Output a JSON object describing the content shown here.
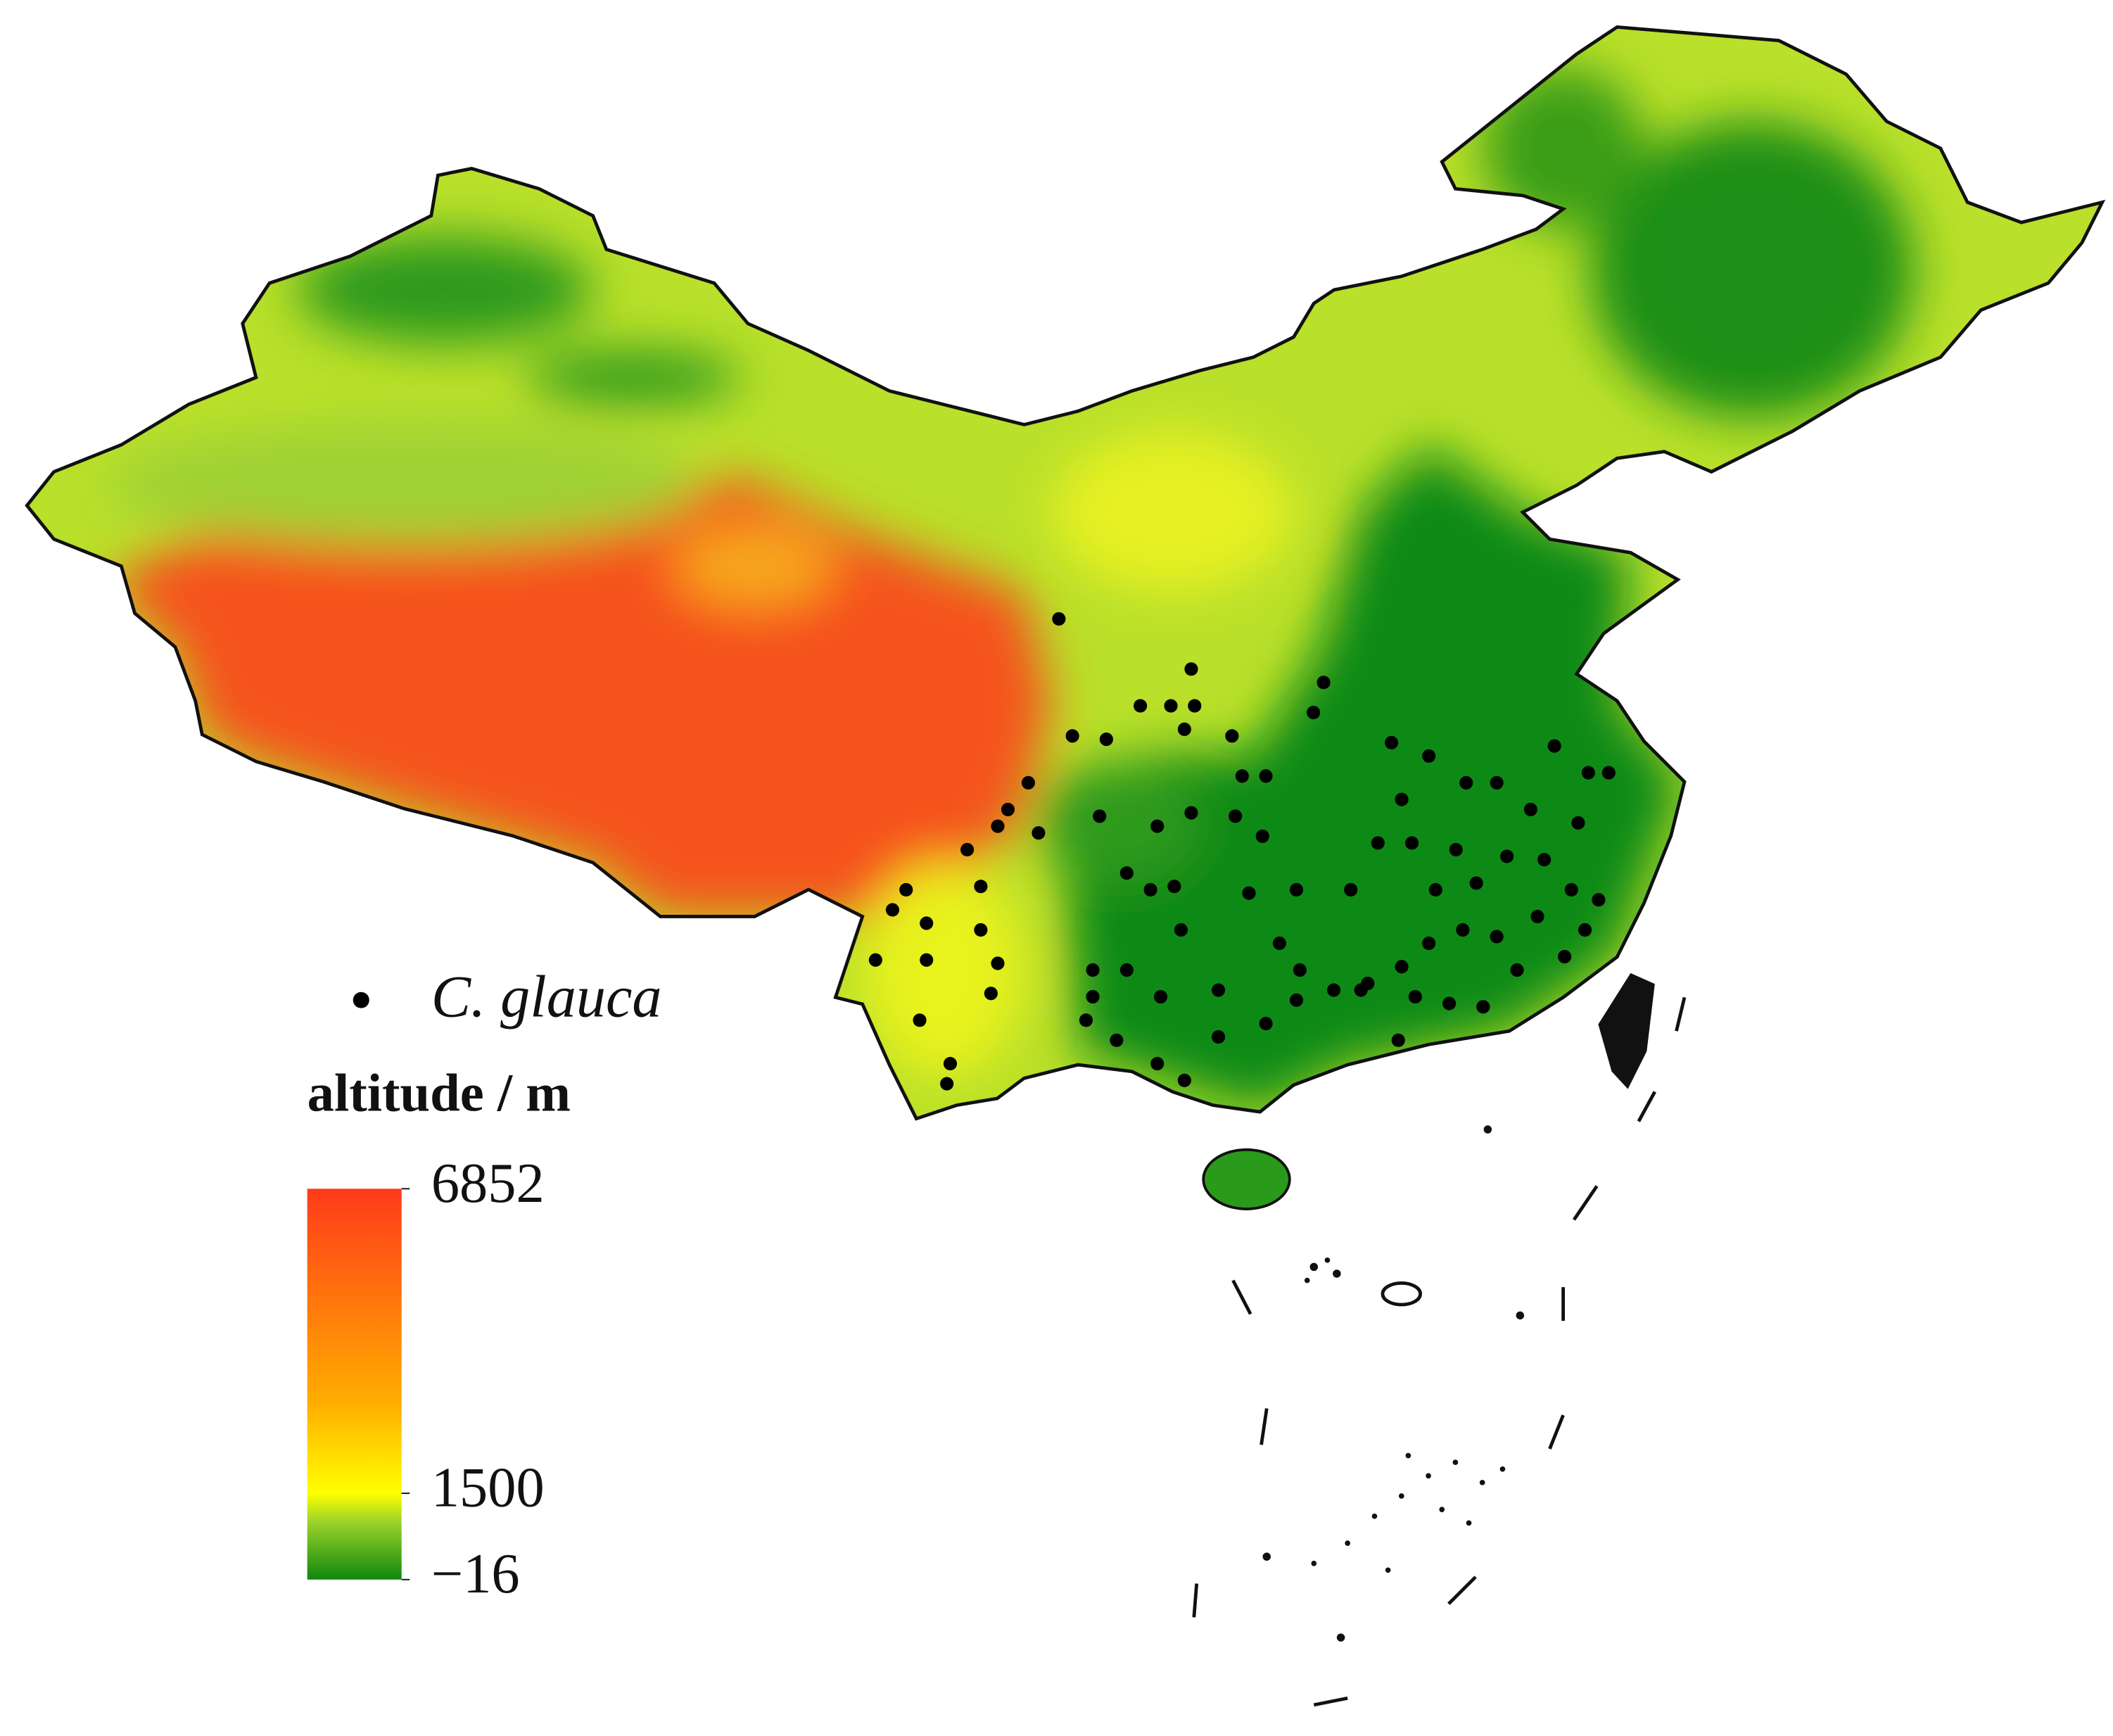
{
  "chart_data": {
    "type": "map",
    "colorbar_title": "altitude / m",
    "ylim": [
      -16,
      6852
    ],
    "yticks": [
      6852,
      1500,
      {
        "value": -16,
        "label": "−16"
      }
    ],
    "series": [
      {
        "name": "C. glauca",
        "color": "#000000",
        "lon": [
          103.9,
          107.8,
          111.7,
          104.3,
          105.3,
          106.3,
          107.2,
          107.6,
          107.9,
          109.0,
          111.4,
          114.8,
          113.7,
          118.5,
          119.5,
          120.1,
          109.3,
          110.0,
          103.0,
          102.4,
          102.1,
          101.2,
          103.3,
          105.1,
          106.8,
          107.8,
          109.1,
          109.9,
          114.0,
          115.9,
          116.8,
          117.8,
          119.2,
          113.3,
          114.3,
          115.6,
          117.1,
          118.2,
          99.4,
          99.0,
          101.6,
          100.0,
          105.9,
          106.6,
          107.3,
          109.5,
          110.9,
          112.5,
          115.0,
          116.2,
          119.0,
          119.8,
          98.5,
          100.0,
          101.6,
          102.1,
          101.9,
          104.9,
          105.9,
          107.5,
          108.6,
          110.4,
          111.0,
          112.0,
          113.0,
          114.0,
          114.8,
          115.8,
          116.8,
          118.0,
          118.8,
          119.4,
          99.8,
          100.7,
          100.6,
          104.7,
          104.9,
          105.6,
          106.9,
          108.6,
          110.0,
          110.9,
          113.9,
          115.4,
          116.4,
          106.8,
          107.6,
          112.8,
          114.4,
          117.4
        ],
        "lat": [
          35.6,
          34.1,
          33.7,
          32.1,
          32.0,
          33.0,
          33.0,
          32.3,
          33.0,
          32.1,
          32.8,
          31.5,
          31.9,
          31.8,
          31.0,
          31.0,
          30.9,
          30.9,
          30.7,
          29.9,
          29.4,
          28.7,
          29.2,
          29.7,
          29.4,
          29.8,
          29.7,
          29.1,
          30.2,
          30.7,
          30.7,
          29.9,
          29.5,
          28.9,
          28.9,
          28.7,
          28.5,
          28.4,
          27.5,
          26.9,
          27.6,
          26.5,
          28.0,
          27.5,
          27.6,
          27.4,
          27.5,
          27.5,
          27.5,
          27.7,
          27.5,
          27.2,
          25.4,
          25.4,
          26.3,
          25.3,
          24.4,
          25.1,
          25.1,
          26.3,
          24.5,
          25.9,
          25.1,
          24.5,
          24.7,
          25.2,
          25.9,
          26.3,
          26.1,
          26.7,
          25.5,
          26.3,
          23.6,
          22.3,
          21.7,
          23.6,
          24.3,
          23.0,
          24.3,
          23.1,
          23.5,
          24.2,
          23.0,
          24.1,
          24.0,
          22.3,
          21.8,
          24.5,
          24.3,
          25.1
        ]
      }
    ]
  }
}
